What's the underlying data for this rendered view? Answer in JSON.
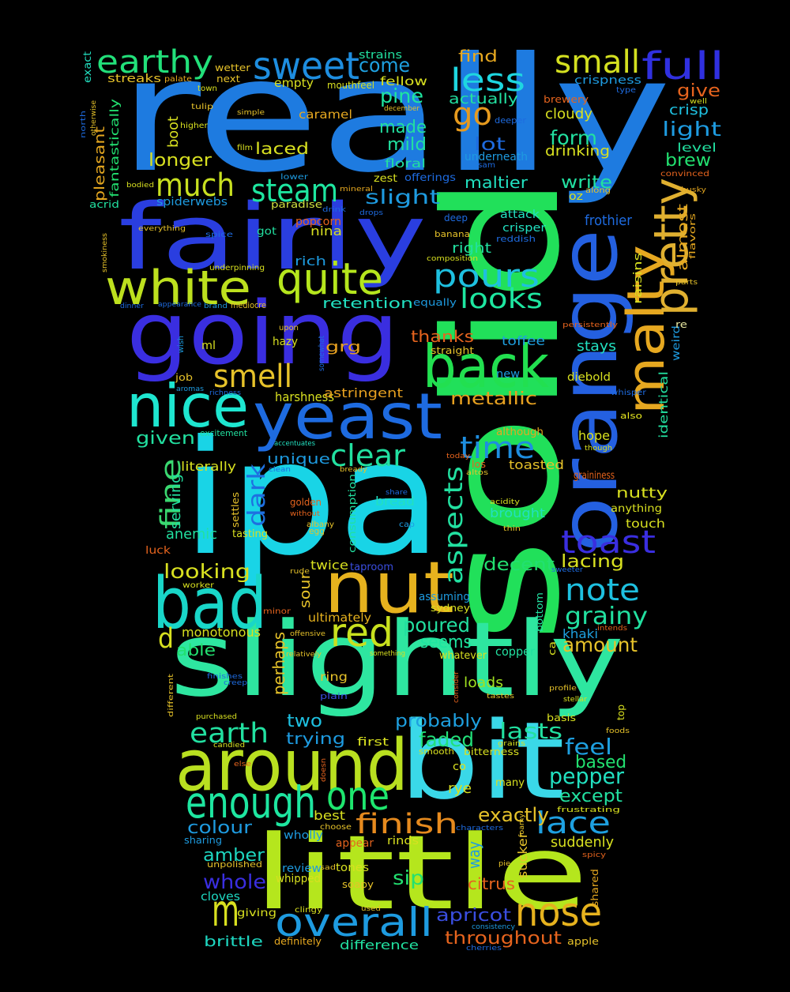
{
  "words": [
    {
      "text": "really",
      "color": "#1e7be0"
    },
    {
      "text": "ipa",
      "color": "#19d4e6"
    },
    {
      "text": "solid",
      "color": "#21e05a"
    },
    {
      "text": "slightly",
      "color": "#2ee6a0"
    },
    {
      "text": "little",
      "color": "#b5e61d"
    },
    {
      "text": "bit",
      "color": "#3ad8e8"
    },
    {
      "text": "fairly",
      "color": "#2a3ee0"
    },
    {
      "text": "going",
      "color": "#3a2ee0"
    },
    {
      "text": "orange",
      "color": "#2460e0"
    },
    {
      "text": "around",
      "color": "#b9e020"
    },
    {
      "text": "nut",
      "color": "#e6b21e"
    },
    {
      "text": "bad",
      "color": "#19d6c8"
    },
    {
      "text": "yeast",
      "color": "#1e6be0"
    },
    {
      "text": "nice",
      "color": "#1ee6d0"
    },
    {
      "text": "back",
      "color": "#22e050"
    },
    {
      "text": "malty",
      "color": "#e6a820"
    },
    {
      "text": "pretty",
      "color": "#e0b030"
    },
    {
      "text": "white",
      "color": "#bde01e"
    },
    {
      "text": "quite",
      "color": "#b5e61d"
    },
    {
      "text": "enough",
      "color": "#1ee6a0"
    },
    {
      "text": "one",
      "color": "#1ee66e"
    },
    {
      "text": "overall",
      "color": "#1e9be0"
    },
    {
      "text": "nose",
      "color": "#e6b21e"
    },
    {
      "text": "m",
      "color": "#d8e020"
    },
    {
      "text": "red",
      "color": "#c8e01e"
    },
    {
      "text": "sweet",
      "color": "#1e8ee0"
    },
    {
      "text": "full",
      "color": "#3030e0"
    },
    {
      "text": "earthy",
      "color": "#22e07a"
    },
    {
      "text": "small",
      "color": "#d4e020"
    },
    {
      "text": "less",
      "color": "#1ed6e0"
    },
    {
      "text": "go",
      "color": "#e69a1e"
    },
    {
      "text": "much",
      "color": "#c8e020"
    },
    {
      "text": "steam",
      "color": "#1ee6a0"
    },
    {
      "text": "smell",
      "color": "#e6c22a"
    },
    {
      "text": "pours",
      "color": "#1ec0e0"
    },
    {
      "text": "looks",
      "color": "#1ee6a0"
    },
    {
      "text": "clear",
      "color": "#22e0a0"
    },
    {
      "text": "time",
      "color": "#1e8ee0"
    },
    {
      "text": "dark",
      "color": "#1e70e0"
    },
    {
      "text": "fine",
      "color": "#3ad870"
    },
    {
      "text": "toast",
      "color": "#3a2ee0"
    },
    {
      "text": "aspects",
      "color": "#22e0a0"
    },
    {
      "text": "note",
      "color": "#1ec0e0"
    },
    {
      "text": "grainy",
      "color": "#22e0a0"
    },
    {
      "text": "lace",
      "color": "#1ea0e0"
    },
    {
      "text": "finish",
      "color": "#e68a1e"
    },
    {
      "text": "earth",
      "color": "#22e0a0"
    },
    {
      "text": "d",
      "color": "#d8e020"
    },
    {
      "text": "poured",
      "color": "#22e0a0"
    },
    {
      "text": "amount",
      "color": "#e6c22a"
    },
    {
      "text": "seems",
      "color": "#1ee6a0"
    },
    {
      "text": "faded",
      "color": "#22e07a"
    },
    {
      "text": "lasts",
      "color": "#22e0a0"
    },
    {
      "text": "probably",
      "color": "#1ea0e0"
    },
    {
      "text": "feel",
      "color": "#1ea0e0"
    },
    {
      "text": "pepper",
      "color": "#22e0c0"
    },
    {
      "text": "based",
      "color": "#22e070"
    },
    {
      "text": "except",
      "color": "#22e0a0"
    },
    {
      "text": "exactly",
      "color": "#e6c22a"
    },
    {
      "text": "suddenly",
      "color": "#d8e020"
    },
    {
      "text": "colour",
      "color": "#1e9be0"
    },
    {
      "text": "amber",
      "color": "#1ed6c0"
    },
    {
      "text": "whole",
      "color": "#3a2ee0"
    },
    {
      "text": "sip",
      "color": "#22e070"
    },
    {
      "text": "citrus",
      "color": "#e6641e"
    },
    {
      "text": "apricot",
      "color": "#3a4ee0"
    },
    {
      "text": "throughout",
      "color": "#e6641e"
    },
    {
      "text": "brittle",
      "color": "#1ed6c0"
    },
    {
      "text": "difference",
      "color": "#22e0a0"
    },
    {
      "text": "two",
      "color": "#1ec0e0"
    },
    {
      "text": "trying",
      "color": "#1e9be0"
    },
    {
      "text": "perhaps",
      "color": "#e6c22a"
    },
    {
      "text": "sour",
      "color": "#e6c22a"
    },
    {
      "text": "monotonous",
      "color": "#d8e020"
    },
    {
      "text": "able",
      "color": "#22e070"
    },
    {
      "text": "ultimately",
      "color": "#e6b21e"
    },
    {
      "text": "ring",
      "color": "#e6c22a"
    },
    {
      "text": "copper",
      "color": "#22e0a0"
    },
    {
      "text": "whatever",
      "color": "#d8e020"
    },
    {
      "text": "khaki",
      "color": "#1ea0e0"
    },
    {
      "text": "loads",
      "color": "#a0e020"
    },
    {
      "text": "decent",
      "color": "#22e070"
    },
    {
      "text": "lacing",
      "color": "#d8e020"
    },
    {
      "text": "looking",
      "color": "#d8e020"
    },
    {
      "text": "anemic",
      "color": "#22e0a0"
    },
    {
      "text": "serving",
      "color": "#22e0a0"
    },
    {
      "text": "given",
      "color": "#22e0a0"
    },
    {
      "text": "literally",
      "color": "#d8e020"
    },
    {
      "text": "harshness",
      "color": "#d8e020"
    },
    {
      "text": "astringent",
      "color": "#e6a020"
    },
    {
      "text": "metallic",
      "color": "#e6a020"
    },
    {
      "text": "unique",
      "color": "#1e9be0"
    },
    {
      "text": "retention",
      "color": "#22e0c0"
    },
    {
      "text": "grg",
      "color": "#e6a020"
    },
    {
      "text": "thanks",
      "color": "#e6641e"
    },
    {
      "text": "toffee",
      "color": "#1ea0e0"
    },
    {
      "text": "stays",
      "color": "#22e0c0"
    },
    {
      "text": "diebold",
      "color": "#d8e020"
    },
    {
      "text": "new",
      "color": "#1e9be0"
    },
    {
      "text": "hope",
      "color": "#d8e020"
    },
    {
      "text": "toasted",
      "color": "#e6c22a"
    },
    {
      "text": "graininess",
      "color": "#e6641e"
    },
    {
      "text": "nutty",
      "color": "#d8e020"
    },
    {
      "text": "anything",
      "color": "#d8e020"
    },
    {
      "text": "touch",
      "color": "#d8e020"
    },
    {
      "text": "brought",
      "color": "#22e0c0"
    },
    {
      "text": "bread",
      "color": "#22e0c0"
    },
    {
      "text": "consumption",
      "color": "#22e0a0"
    },
    {
      "text": "almost",
      "color": "#e6a820"
    },
    {
      "text": "raisins",
      "color": "#d8e020"
    },
    {
      "text": "identical",
      "color": "#22e0a0"
    },
    {
      "text": "weird",
      "color": "#1e9be0"
    },
    {
      "text": "also",
      "color": "#e6e620"
    },
    {
      "text": "whisper",
      "color": "#1e6be0"
    },
    {
      "text": "though",
      "color": "#d8e020"
    },
    {
      "text": "persistently",
      "color": "#e6641e"
    },
    {
      "text": "re",
      "color": "#e6e6a0"
    },
    {
      "text": "equally",
      "color": "#1e9be0"
    },
    {
      "text": "straight",
      "color": "#e6c22a"
    },
    {
      "text": "somewhat",
      "color": "#1e6be0"
    },
    {
      "text": "hazy",
      "color": "#d8e020"
    },
    {
      "text": "ml",
      "color": "#d8e020"
    },
    {
      "text": "wish",
      "color": "#1e9be0"
    },
    {
      "text": "job",
      "color": "#e6c22a"
    },
    {
      "text": "aromas",
      "color": "#1e9be0"
    },
    {
      "text": "richness",
      "color": "#1e6be0"
    },
    {
      "text": "excitement",
      "color": "#22e0a0"
    },
    {
      "text": "accentuates",
      "color": "#22e0c0"
    },
    {
      "text": "upon",
      "color": "#e6c22a"
    },
    {
      "text": "dinner",
      "color": "#1e6be0"
    },
    {
      "text": "appearance",
      "color": "#1e6be0"
    },
    {
      "text": "brand",
      "color": "#1e9be0"
    },
    {
      "text": "mediocre",
      "color": "#e6c22a"
    },
    {
      "text": "underpinning",
      "color": "#d8e020"
    },
    {
      "text": "smokiness",
      "color": "#e6c22a"
    },
    {
      "text": "acrid",
      "color": "#22e0a0"
    },
    {
      "text": "everything",
      "color": "#e6c22a"
    },
    {
      "text": "spice",
      "color": "#1e6be0"
    },
    {
      "text": "got",
      "color": "#22e0a0"
    },
    {
      "text": "paradise",
      "color": "#d0e040"
    },
    {
      "text": "spiderwebs",
      "color": "#1e9be0"
    },
    {
      "text": "drink",
      "color": "#1e6be0"
    },
    {
      "text": "drops",
      "color": "#1e6be0"
    },
    {
      "text": "mineral",
      "color": "#e6a820"
    },
    {
      "text": "lower",
      "color": "#1e9be0"
    },
    {
      "text": "offerings",
      "color": "#1e6be0"
    },
    {
      "text": "zest",
      "color": "#d8e020"
    },
    {
      "text": "slight",
      "color": "#1e9be0"
    },
    {
      "text": "mild",
      "color": "#22e0a0"
    },
    {
      "text": "made",
      "color": "#22e0a0"
    },
    {
      "text": "floral",
      "color": "#22e0a0"
    },
    {
      "text": "pine",
      "color": "#1ee6a0"
    },
    {
      "text": "come",
      "color": "#1ea0e0"
    },
    {
      "text": "strains",
      "color": "#22e0a0"
    },
    {
      "text": "fellow",
      "color": "#d8e020"
    },
    {
      "text": "empty",
      "color": "#d8e020"
    },
    {
      "text": "mouthfeel",
      "color": "#d8e020"
    },
    {
      "text": "december",
      "color": "#e6c22a"
    },
    {
      "text": "caramel",
      "color": "#e6a820"
    },
    {
      "text": "laced",
      "color": "#d8e020"
    },
    {
      "text": "longer",
      "color": "#d8e020"
    },
    {
      "text": "boot",
      "color": "#d8e020"
    },
    {
      "text": "film",
      "color": "#d8e020"
    },
    {
      "text": "higher",
      "color": "#d8e020"
    },
    {
      "text": "tulip",
      "color": "#e6c22a"
    },
    {
      "text": "simple",
      "color": "#e6c22a"
    },
    {
      "text": "town",
      "color": "#d8e020"
    },
    {
      "text": "wetter",
      "color": "#e6c22a"
    },
    {
      "text": "next",
      "color": "#e6c22a"
    },
    {
      "text": "streaks",
      "color": "#e6c22a"
    },
    {
      "text": "palate",
      "color": "#e6a820"
    },
    {
      "text": "exact",
      "color": "#22e0c0"
    },
    {
      "text": "north",
      "color": "#1e6be0"
    },
    {
      "text": "pleasant",
      "color": "#e6a820"
    },
    {
      "text": "fantastically",
      "color": "#22e070"
    },
    {
      "text": "otherwise",
      "color": "#e6c22a"
    },
    {
      "text": "bodied",
      "color": "#d8e020"
    },
    {
      "text": "lot",
      "color": "#1e6be0"
    },
    {
      "text": "actually",
      "color": "#22e0a0"
    },
    {
      "text": "find",
      "color": "#e6a820"
    },
    {
      "text": "maltier",
      "color": "#22e0c0"
    },
    {
      "text": "underneath",
      "color": "#1e9be0"
    },
    {
      "text": "sam",
      "color": "#1e6be0"
    },
    {
      "text": "deep",
      "color": "#1e6be0"
    },
    {
      "text": "attack",
      "color": "#22e0c0"
    },
    {
      "text": "crisper",
      "color": "#22e0c0"
    },
    {
      "text": "reddish",
      "color": "#1e6be0"
    },
    {
      "text": "banana",
      "color": "#e6c22a"
    },
    {
      "text": "right",
      "color": "#22e0a0"
    },
    {
      "text": "composition",
      "color": "#d8e020"
    },
    {
      "text": "deeper",
      "color": "#1e6be0"
    },
    {
      "text": "cloudy",
      "color": "#d8e020"
    },
    {
      "text": "form",
      "color": "#22e0a0"
    },
    {
      "text": "drinking",
      "color": "#d8e020"
    },
    {
      "text": "write",
      "color": "#22e0a0"
    },
    {
      "text": "oz",
      "color": "#d8e020"
    },
    {
      "text": "along",
      "color": "#e6c22a"
    },
    {
      "text": "frothier",
      "color": "#1e6be0"
    },
    {
      "text": "crispness",
      "color": "#1e9be0"
    },
    {
      "text": "type",
      "color": "#1e6be0"
    },
    {
      "text": "give",
      "color": "#e6641e"
    },
    {
      "text": "well",
      "color": "#d8e020"
    },
    {
      "text": "brewery",
      "color": "#e6641e"
    },
    {
      "text": "crisp",
      "color": "#1ec0e0"
    },
    {
      "text": "light",
      "color": "#1e9be0"
    },
    {
      "text": "level",
      "color": "#22e0a0"
    },
    {
      "text": "brew",
      "color": "#22e070"
    },
    {
      "text": "convinced",
      "color": "#e6641e"
    },
    {
      "text": "husky",
      "color": "#e6a820"
    },
    {
      "text": "flavors",
      "color": "#e6a820"
    },
    {
      "text": "parts",
      "color": "#e6c22a"
    },
    {
      "text": "rich",
      "color": "#1e9be0"
    },
    {
      "text": "popcorn",
      "color": "#e6641e"
    },
    {
      "text": "nina",
      "color": "#d8e020"
    },
    {
      "text": "golden",
      "color": "#e6641e"
    },
    {
      "text": "without",
      "color": "#e6641e"
    },
    {
      "text": "settles",
      "color": "#e6c22a"
    },
    {
      "text": "albany",
      "color": "#e6c22a"
    },
    {
      "text": "egg",
      "color": "#e6c22a"
    },
    {
      "text": "tasting",
      "color": "#d8e020"
    },
    {
      "text": "clean",
      "color": "#1e6be0"
    },
    {
      "text": "bready",
      "color": "#e6c22a"
    },
    {
      "text": "today",
      "color": "#e6641e"
    },
    {
      "text": "los",
      "color": "#e6641e"
    },
    {
      "text": "altos",
      "color": "#e6c22a"
    },
    {
      "text": "although",
      "color": "#e6a820"
    },
    {
      "text": "share",
      "color": "#1e6be0"
    },
    {
      "text": "acidity",
      "color": "#d8e020"
    },
    {
      "text": "thin",
      "color": "#e6c22a"
    },
    {
      "text": "cap",
      "color": "#1e9be0"
    },
    {
      "text": "luck",
      "color": "#e6641e"
    },
    {
      "text": "rude",
      "color": "#e6c22a"
    },
    {
      "text": "twice",
      "color": "#d8e020"
    },
    {
      "text": "taproom",
      "color": "#3a4ee0"
    },
    {
      "text": "sweeter",
      "color": "#1e6be0"
    },
    {
      "text": "worker",
      "color": "#d8e020"
    },
    {
      "text": "assuming",
      "color": "#1e9be0"
    },
    {
      "text": "sydney",
      "color": "#d8e020"
    },
    {
      "text": "minor",
      "color": "#e6641e"
    },
    {
      "text": "offensive",
      "color": "#e6c22a"
    },
    {
      "text": "bottom",
      "color": "#22e0a0"
    },
    {
      "text": "intends",
      "color": "#e6641e"
    },
    {
      "text": "ca",
      "color": "#d8e020"
    },
    {
      "text": "relatively",
      "color": "#e6c22a"
    },
    {
      "text": "something",
      "color": "#d8e020"
    },
    {
      "text": "finishes",
      "color": "#1e6be0"
    },
    {
      "text": "creep",
      "color": "#1e6be0"
    },
    {
      "text": "plain",
      "color": "#3a4ee0"
    },
    {
      "text": "consider",
      "color": "#e6641e"
    },
    {
      "text": "profile",
      "color": "#e6c22a"
    },
    {
      "text": "tastes",
      "color": "#e6c22a"
    },
    {
      "text": "stellar",
      "color": "#d8e020"
    },
    {
      "text": "different",
      "color": "#e6c22a"
    },
    {
      "text": "purchased",
      "color": "#d8e020"
    },
    {
      "text": "top",
      "color": "#d8e020"
    },
    {
      "text": "basis",
      "color": "#d8e020"
    },
    {
      "text": "candied",
      "color": "#d8e020"
    },
    {
      "text": "else",
      "color": "#e6641e"
    },
    {
      "text": "first",
      "color": "#d8e020"
    },
    {
      "text": "smooth",
      "color": "#d8e020"
    },
    {
      "text": "grains",
      "color": "#d8e020"
    },
    {
      "text": "bitterness",
      "color": "#d8e020"
    },
    {
      "text": "foods",
      "color": "#e6c22a"
    },
    {
      "text": "doesn",
      "color": "#e6641e"
    },
    {
      "text": "co",
      "color": "#d8e020"
    },
    {
      "text": "rye",
      "color": "#d8e020"
    },
    {
      "text": "many",
      "color": "#d8e020"
    },
    {
      "text": "best",
      "color": "#d8e020"
    },
    {
      "text": "foamy",
      "color": "#e6c22a"
    },
    {
      "text": "frustrating",
      "color": "#d8e020"
    },
    {
      "text": "choose",
      "color": "#e6c22a"
    },
    {
      "text": "characters",
      "color": "#1e6be0"
    },
    {
      "text": "wholly",
      "color": "#1e9be0"
    },
    {
      "text": "sharing",
      "color": "#1e9be0"
    },
    {
      "text": "rinds",
      "color": "#d8e020"
    },
    {
      "text": "appear",
      "color": "#e6641e"
    },
    {
      "text": "way",
      "color": "#1e9be0"
    },
    {
      "text": "spicy",
      "color": "#e6641e"
    },
    {
      "text": "sucker",
      "color": "#e6c22a"
    },
    {
      "text": "unpolished",
      "color": "#e6c22a"
    },
    {
      "text": "sad",
      "color": "#e6c22a"
    },
    {
      "text": "tones",
      "color": "#d8e020"
    },
    {
      "text": "review",
      "color": "#1e9be0"
    },
    {
      "text": "whipped",
      "color": "#d8e020"
    },
    {
      "text": "pie",
      "color": "#e6c22a"
    },
    {
      "text": "soapy",
      "color": "#e6c22a"
    },
    {
      "text": "shared",
      "color": "#e6a820"
    },
    {
      "text": "cloves",
      "color": "#1ed6c0"
    },
    {
      "text": "clingy",
      "color": "#d8e020"
    },
    {
      "text": "used",
      "color": "#e6c22a"
    },
    {
      "text": "giving",
      "color": "#d8e020"
    },
    {
      "text": "consistency",
      "color": "#1e9be0"
    },
    {
      "text": "apple",
      "color": "#e6c22a"
    },
    {
      "text": "definitely",
      "color": "#e6a820"
    },
    {
      "text": "cherries",
      "color": "#1e6be0"
    }
  ]
}
